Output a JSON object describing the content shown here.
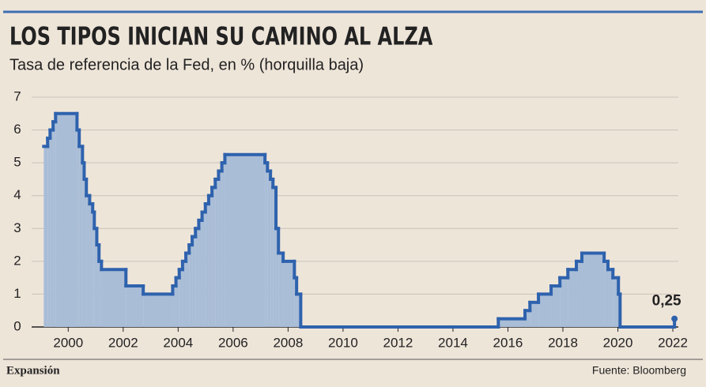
{
  "chart_data": {
    "type": "step",
    "title": "LOS TIPOS INICIAN SU CAMINO AL ALZA",
    "subtitle": "Tasa de referencia de la Fed, en % (horquilla baja)",
    "source": "Fuente: Bloomberg",
    "brand": "Expansión",
    "color": "#2e62ad",
    "fill_color": "#a9bdd7",
    "grid": true,
    "x": [
      1999.11,
      1999.25,
      1999.34,
      1999.45,
      1999.54,
      2000.32,
      2000.4,
      2000.52,
      2000.58,
      2000.66,
      2000.78,
      2000.89,
      2000.95,
      2001.04,
      2001.12,
      2001.21,
      2002.1,
      2002.73,
      2003.8,
      2003.92,
      2004.04,
      2004.16,
      2004.28,
      2004.4,
      2004.51,
      2004.63,
      2004.75,
      2004.87,
      2004.99,
      2005.11,
      2005.23,
      2005.35,
      2005.47,
      2005.59,
      2005.7,
      2007.16,
      2007.25,
      2007.36,
      2007.45,
      2007.56,
      2007.65,
      2007.82,
      2008.23,
      2008.31,
      2008.46,
      2015.65,
      2016.62,
      2016.8,
      2017.11,
      2017.57,
      2017.89,
      2018.18,
      2018.49,
      2018.69,
      2019.5,
      2019.64,
      2019.82,
      2020.02,
      2020.08,
      2022.06
    ],
    "values": [
      5.5,
      5.75,
      6.0,
      6.25,
      6.5,
      6.0,
      5.5,
      5.0,
      4.5,
      4.0,
      3.75,
      3.5,
      3.0,
      2.5,
      2.0,
      1.75,
      1.25,
      1.0,
      1.25,
      1.5,
      1.75,
      2.0,
      2.25,
      2.5,
      2.75,
      3.0,
      3.25,
      3.5,
      3.75,
      4.0,
      4.25,
      4.5,
      4.75,
      5.0,
      5.25,
      5.0,
      4.75,
      4.5,
      4.25,
      3.0,
      2.25,
      2.0,
      1.5,
      1.0,
      0,
      0.25,
      0.5,
      0.75,
      1.0,
      1.25,
      1.5,
      1.75,
      2.0,
      2.25,
      2.0,
      1.75,
      1.5,
      1.0,
      0,
      0.25
    ],
    "value_labels": [
      null,
      null,
      null,
      null,
      null,
      null,
      null,
      null,
      null,
      null,
      null,
      null,
      null,
      null,
      null,
      null,
      null,
      null,
      null,
      null,
      null,
      null,
      null,
      null,
      null,
      null,
      null,
      null,
      null,
      null,
      null,
      null,
      null,
      null,
      null,
      null,
      null,
      null,
      null,
      null,
      null,
      null,
      null,
      null,
      null,
      null,
      null,
      null,
      null,
      null,
      null,
      null,
      null,
      null,
      null,
      null,
      null,
      null,
      null,
      "0,25"
    ],
    "xlim": [
      1999.1,
      2022.2
    ],
    "xticks": [
      2000,
      2002,
      2004,
      2006,
      2008,
      2010,
      2012,
      2014,
      2016,
      2018,
      2020,
      2022
    ],
    "ylim": [
      0,
      7
    ],
    "yticks": [
      0,
      1,
      2,
      3,
      4,
      5,
      6,
      7
    ]
  }
}
